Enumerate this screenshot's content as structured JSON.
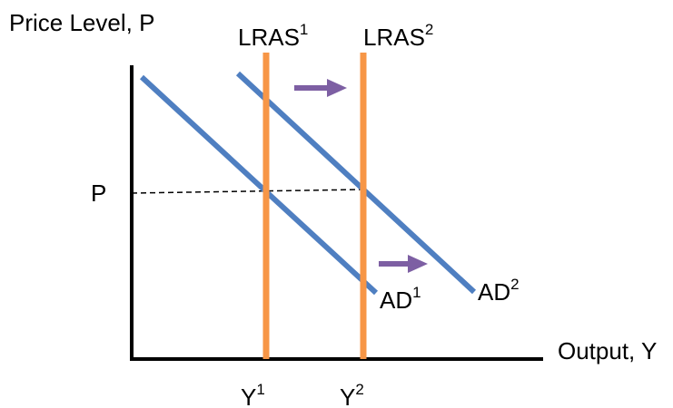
{
  "axes": {
    "y_label": "Price Level, P",
    "x_label": "Output, Y",
    "price_tick": "P",
    "output_ticks": [
      {
        "base": "Y",
        "sup": "1"
      },
      {
        "base": "Y",
        "sup": "2"
      }
    ]
  },
  "curves": {
    "lras": [
      {
        "base": "LRAS",
        "sup": "1"
      },
      {
        "base": "LRAS",
        "sup": "2"
      }
    ],
    "ad": [
      {
        "base": "AD",
        "sup": "1"
      },
      {
        "base": "AD",
        "sup": "2"
      }
    ]
  },
  "colors": {
    "ad_curve": "#4f7fc1",
    "lras_curve": "#f79646",
    "shift_arrow": "#7d5fa3",
    "axis": "#000000"
  },
  "icons": {
    "shift_arrows": [
      "right-arrow-icon",
      "right-arrow-icon"
    ]
  }
}
